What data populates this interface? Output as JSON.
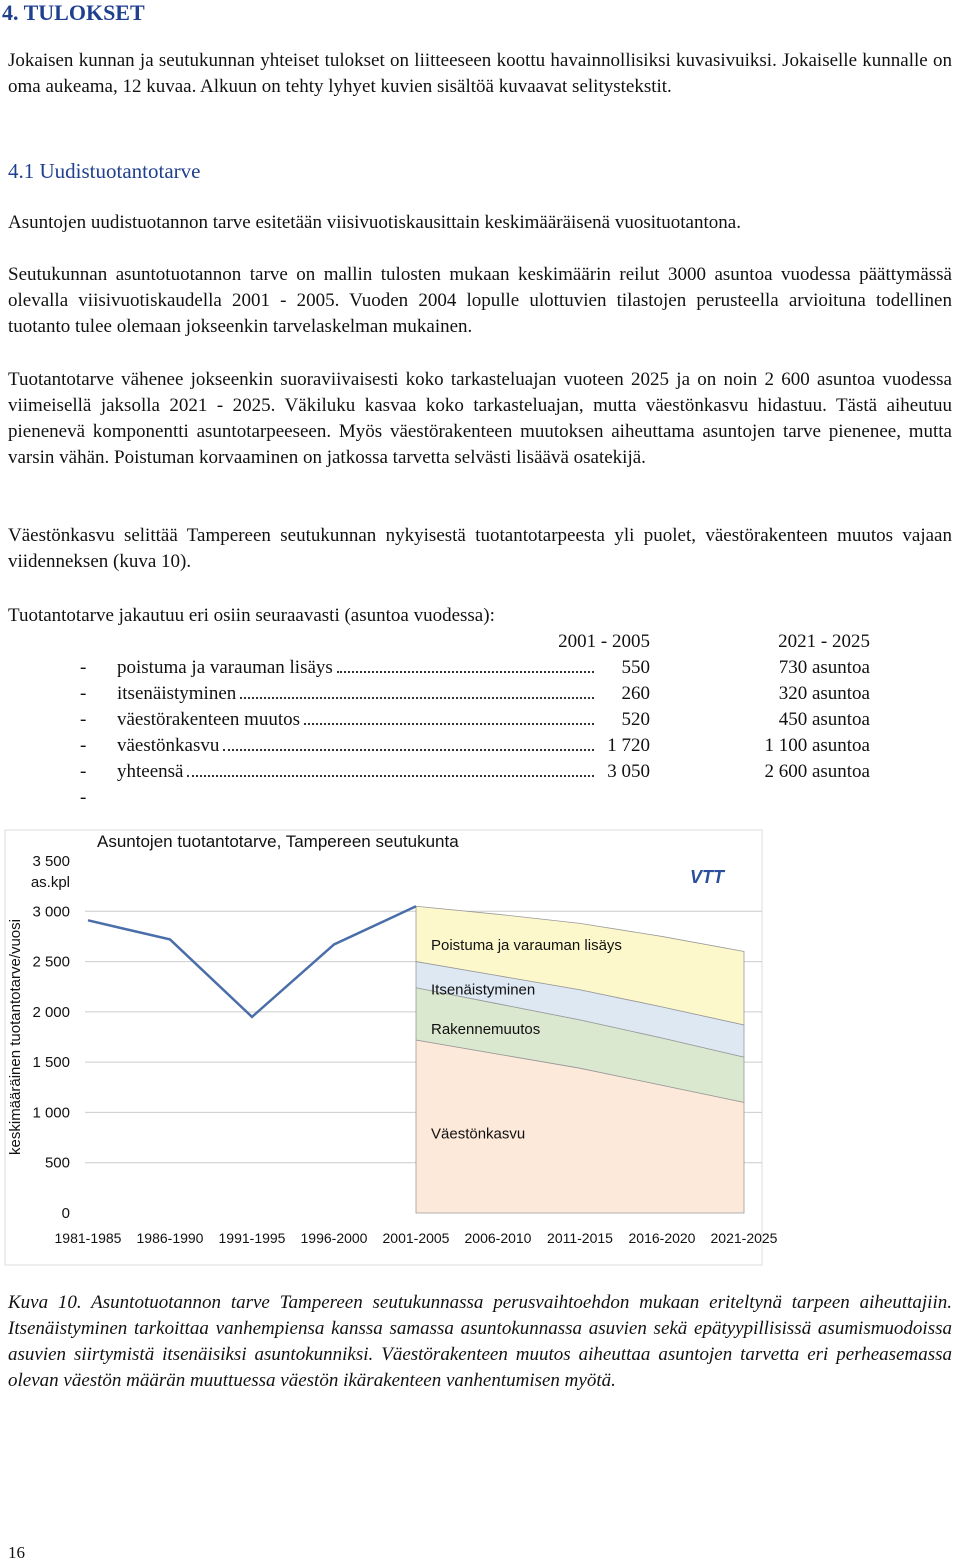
{
  "heading": "4. TULOKSET",
  "intro": "Jokaisen kunnan ja seutukunnan yhteiset tulokset on liitteeseen koottu havainnollisiksi kuvasivuiksi. Jokaiselle kunnalle on oma aukeama, 12 kuvaa. Alkuun on tehty lyhyet kuvien sisältöä kuvaavat selitystekstit.",
  "section": {
    "title": "4.1 Uudistuotantotarve",
    "paragraphs": [
      "Asuntojen uudistuotannon tarve esitetään viisivuotiskausittain keskimääräisenä vuosituotantona.",
      "Seutukunnan asuntotuotannon tarve on mallin tulosten mukaan keskimäärin reilut 3000 asuntoa vuodessa päättymässä olevalla viisivuotiskaudella 2001 - 2005. Vuoden 2004 lopulle ulottuvien tilastojen perusteella arvioituna todellinen tuotanto tulee olemaan jokseenkin tarvelaskelman mukainen.",
      "Tuotantotarve vähenee jokseenkin suoraviivaisesti koko tarkasteluajan vuoteen 2025 ja on noin 2 600 asuntoa vuodessa viimeisellä jaksolla 2021 - 2025. Väkiluku kasvaa koko tarkasteluajan, mutta väestönkasvu hidastuu. Tästä aiheutuu pienenevä komponentti asuntotarpeeseen. Myös väestörakenteen muutoksen aiheuttama asuntojen tarve pienenee, mutta varsin vähän. Poistuman korvaaminen on jatkossa tarvetta selvästi lisäävä osatekijä.",
      "Väestönkasvu selittää Tampereen seutukunnan nykyisestä tuotantotarpeesta yli puolet, väestörakenteen muutos vajaan viidenneksen (kuva 10)."
    ]
  },
  "table": {
    "intro": "Tuotantotarve jakautuu eri osiin seuraavasti (asuntoa vuodessa):",
    "columns": [
      "2001 - 2005",
      "2021 - 2025"
    ],
    "rows": [
      [
        "poistuma ja varauman lisäys",
        "550",
        "730 asuntoa"
      ],
      [
        "itsenäistyminen",
        "260",
        "320 asuntoa"
      ],
      [
        "väestörakenteen muutos",
        "520",
        "450 asuntoa"
      ],
      [
        "väestönkasvu",
        "1 720",
        "1 100 asuntoa"
      ],
      [
        "yhteensä",
        "3 050",
        "2 600 asuntoa"
      ]
    ]
  },
  "chart_data": {
    "type": "stacked-area",
    "title": "Asuntojen tuotantotarve, Tampereen seutukunta",
    "logo": "VTT",
    "y_label": "keskimääräinen tuotantotarve/vuosi",
    "y_unit": "as.kpl",
    "categories": [
      "1981-1985",
      "1986-1990",
      "1991-1995",
      "1996-2000",
      "2001-2005",
      "2006-2010",
      "2011-2015",
      "2016-2020",
      "2021-2025"
    ],
    "ylim": [
      0,
      3500
    ],
    "yticks": [
      0,
      500,
      {
        "value": 1000,
        "label": "1 000"
      },
      {
        "value": 1500,
        "label": "1 500"
      },
      {
        "value": 2000,
        "label": "2 000"
      },
      {
        "value": 2500,
        "label": "2 500"
      },
      {
        "value": 3000,
        "label": "3 000"
      },
      {
        "value": 3500,
        "label": "3 500"
      }
    ],
    "grid": true,
    "line": {
      "color": "#4a6ea9",
      "values": [
        2910,
        2720,
        1950,
        2670,
        3050,
        null,
        null,
        null,
        null
      ]
    },
    "series": [
      {
        "name": "Väestönkasvu",
        "color": "#fde9d9",
        "values": [
          null,
          null,
          null,
          null,
          1720,
          1580,
          1440,
          1270,
          1100
        ]
      },
      {
        "name": "Rakennemuutos",
        "color": "#dbe8d0",
        "values": [
          null,
          null,
          null,
          null,
          520,
          500,
          480,
          470,
          450
        ]
      },
      {
        "name": "Itsenäistyminen",
        "color": "#dde8f3",
        "values": [
          null,
          null,
          null,
          null,
          260,
          280,
          300,
          310,
          320
        ]
      },
      {
        "name": "Poistuma ja varauman lisäys",
        "color": "#fdf8cc",
        "values": [
          null,
          null,
          null,
          null,
          550,
          610,
          660,
          700,
          730
        ]
      }
    ]
  },
  "caption": "Kuva 10. Asuntotuotannon tarve Tampereen seutukunnassa perusvaihtoehdon mukaan eriteltynä tarpeen aiheuttajiin. Itsenäistyminen tarkoittaa vanhempiensa kanssa samassa asuntokunnassa asuvien sekä epätyypillisissä asumismuodoissa asuvien siirtymistä itsenäisiksi asuntokunniksi. Väestörakenteen muutos aiheuttaa asuntojen tarvetta eri perheasemassa olevan väestön määrän muuttuessa väestön ikärakenteen vanhentumisen myötä.",
  "page_number": "16"
}
